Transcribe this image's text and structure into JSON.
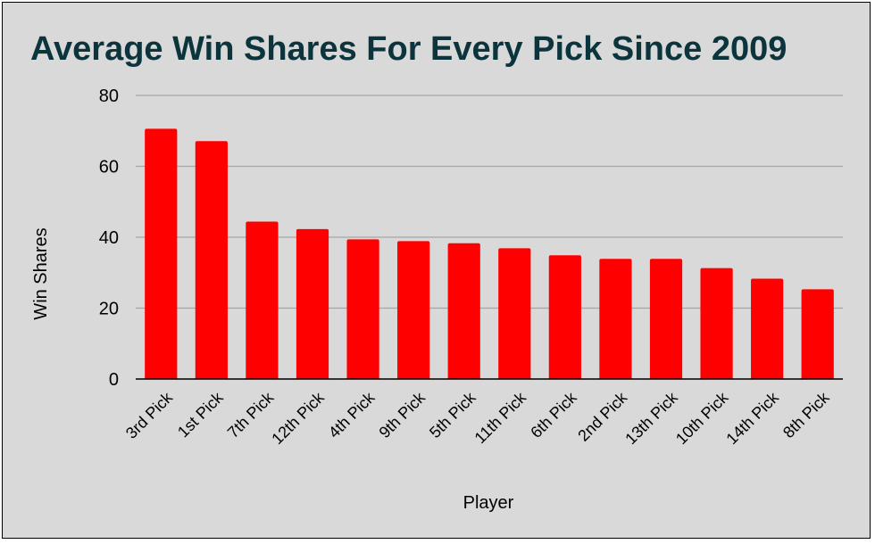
{
  "colors": {
    "background": "#d9d9d9",
    "bar": "#ff0000",
    "title": "#0c343d",
    "grid": "#a6a6a6",
    "axis": "#000000"
  },
  "chart_data": {
    "type": "bar",
    "title": "Average Win Shares For Every Pick Since 2009",
    "xlabel": "Player",
    "ylabel": "Win Shares",
    "categories": [
      "3rd Pick",
      "1st Pick",
      "7th Pick",
      "12th Pick",
      "4th Pick",
      "9th Pick",
      "5th Pick",
      "11th Pick",
      "6th Pick",
      "2nd Pick",
      "13th Pick",
      "10th Pick",
      "14th Pick",
      "8th Pick"
    ],
    "values": [
      70.6,
      67.1,
      44.4,
      42.3,
      39.4,
      38.9,
      38.3,
      36.9,
      34.9,
      33.9,
      33.9,
      31.3,
      28.3,
      25.3
    ],
    "ylim": [
      0,
      80
    ],
    "yticks": [
      0,
      20,
      40,
      60,
      80
    ],
    "grid": true,
    "legend": "none"
  }
}
